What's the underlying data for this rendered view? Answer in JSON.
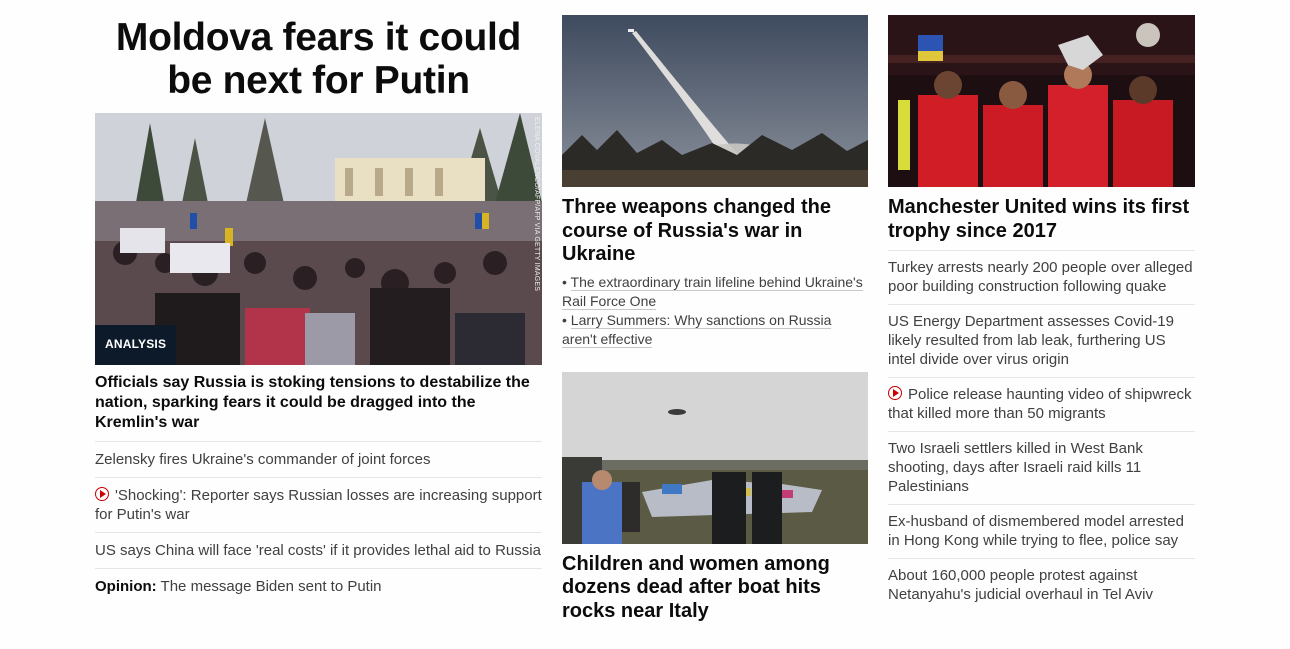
{
  "col1": {
    "headline": "Moldova fears it could be next for Putin",
    "badge": "ANALYSIS",
    "photo_credit": "ELENA COVALENCO/AFP/AFP VIA GETTY IMAGES",
    "lead_text": "Officials say Russia is stoking tensions to destabilize the nation, sparking fears it could be dragged into the Kremlin's war",
    "links": [
      {
        "text": "Zelensky fires Ukraine's commander of joint forces"
      },
      {
        "text": "'Shocking': Reporter says Russian losses are increasing support for Putin's war",
        "video": true
      },
      {
        "text": "US says China will face 'real costs' if it provides lethal aid to Russia"
      }
    ],
    "opinion": {
      "prefix": "Opinion:",
      "text": " The message Biden sent to Putin"
    }
  },
  "col2": {
    "story1": {
      "headline": "Three weapons changed the course of Russia's war in Ukraine",
      "related": [
        {
          "bullet": "• ",
          "text": "The extraordinary train lifeline behind Ukraine's Rail Force One"
        },
        {
          "bullet": "• ",
          "text": "Larry Summers: Why sanctions on Russia aren't effective"
        }
      ]
    },
    "story2": {
      "headline": "Children and women among dozens dead after boat hits rocks near Italy"
    }
  },
  "col3": {
    "headline": "Manchester United wins its first trophy since 2017",
    "links": [
      {
        "text": "Turkey arrests nearly 200 people over alleged poor building construction following quake"
      },
      {
        "text": "US Energy Department assesses Covid-19 likely resulted from lab leak, furthering US intel divide over virus origin"
      },
      {
        "text": "Police release haunting video of shipwreck that killed more than 50 migrants",
        "video": true
      },
      {
        "text": "Two Israeli settlers killed in West Bank shooting, days after Israeli raid kills 11 Palestinians"
      },
      {
        "text": "Ex-husband of dismembered model arrested in Hong Kong while trying to flee, police say"
      },
      {
        "text": "About 160,000 people protest against Netanyahu's judicial overhaul in Tel Aviv"
      }
    ]
  },
  "icons": {
    "video": "play-circle-icon"
  },
  "colors": {
    "video_icon": "#cc0000",
    "badge_bg": "#0c1a2a",
    "divider": "#e6e6e6",
    "text_secondary": "#404040"
  }
}
